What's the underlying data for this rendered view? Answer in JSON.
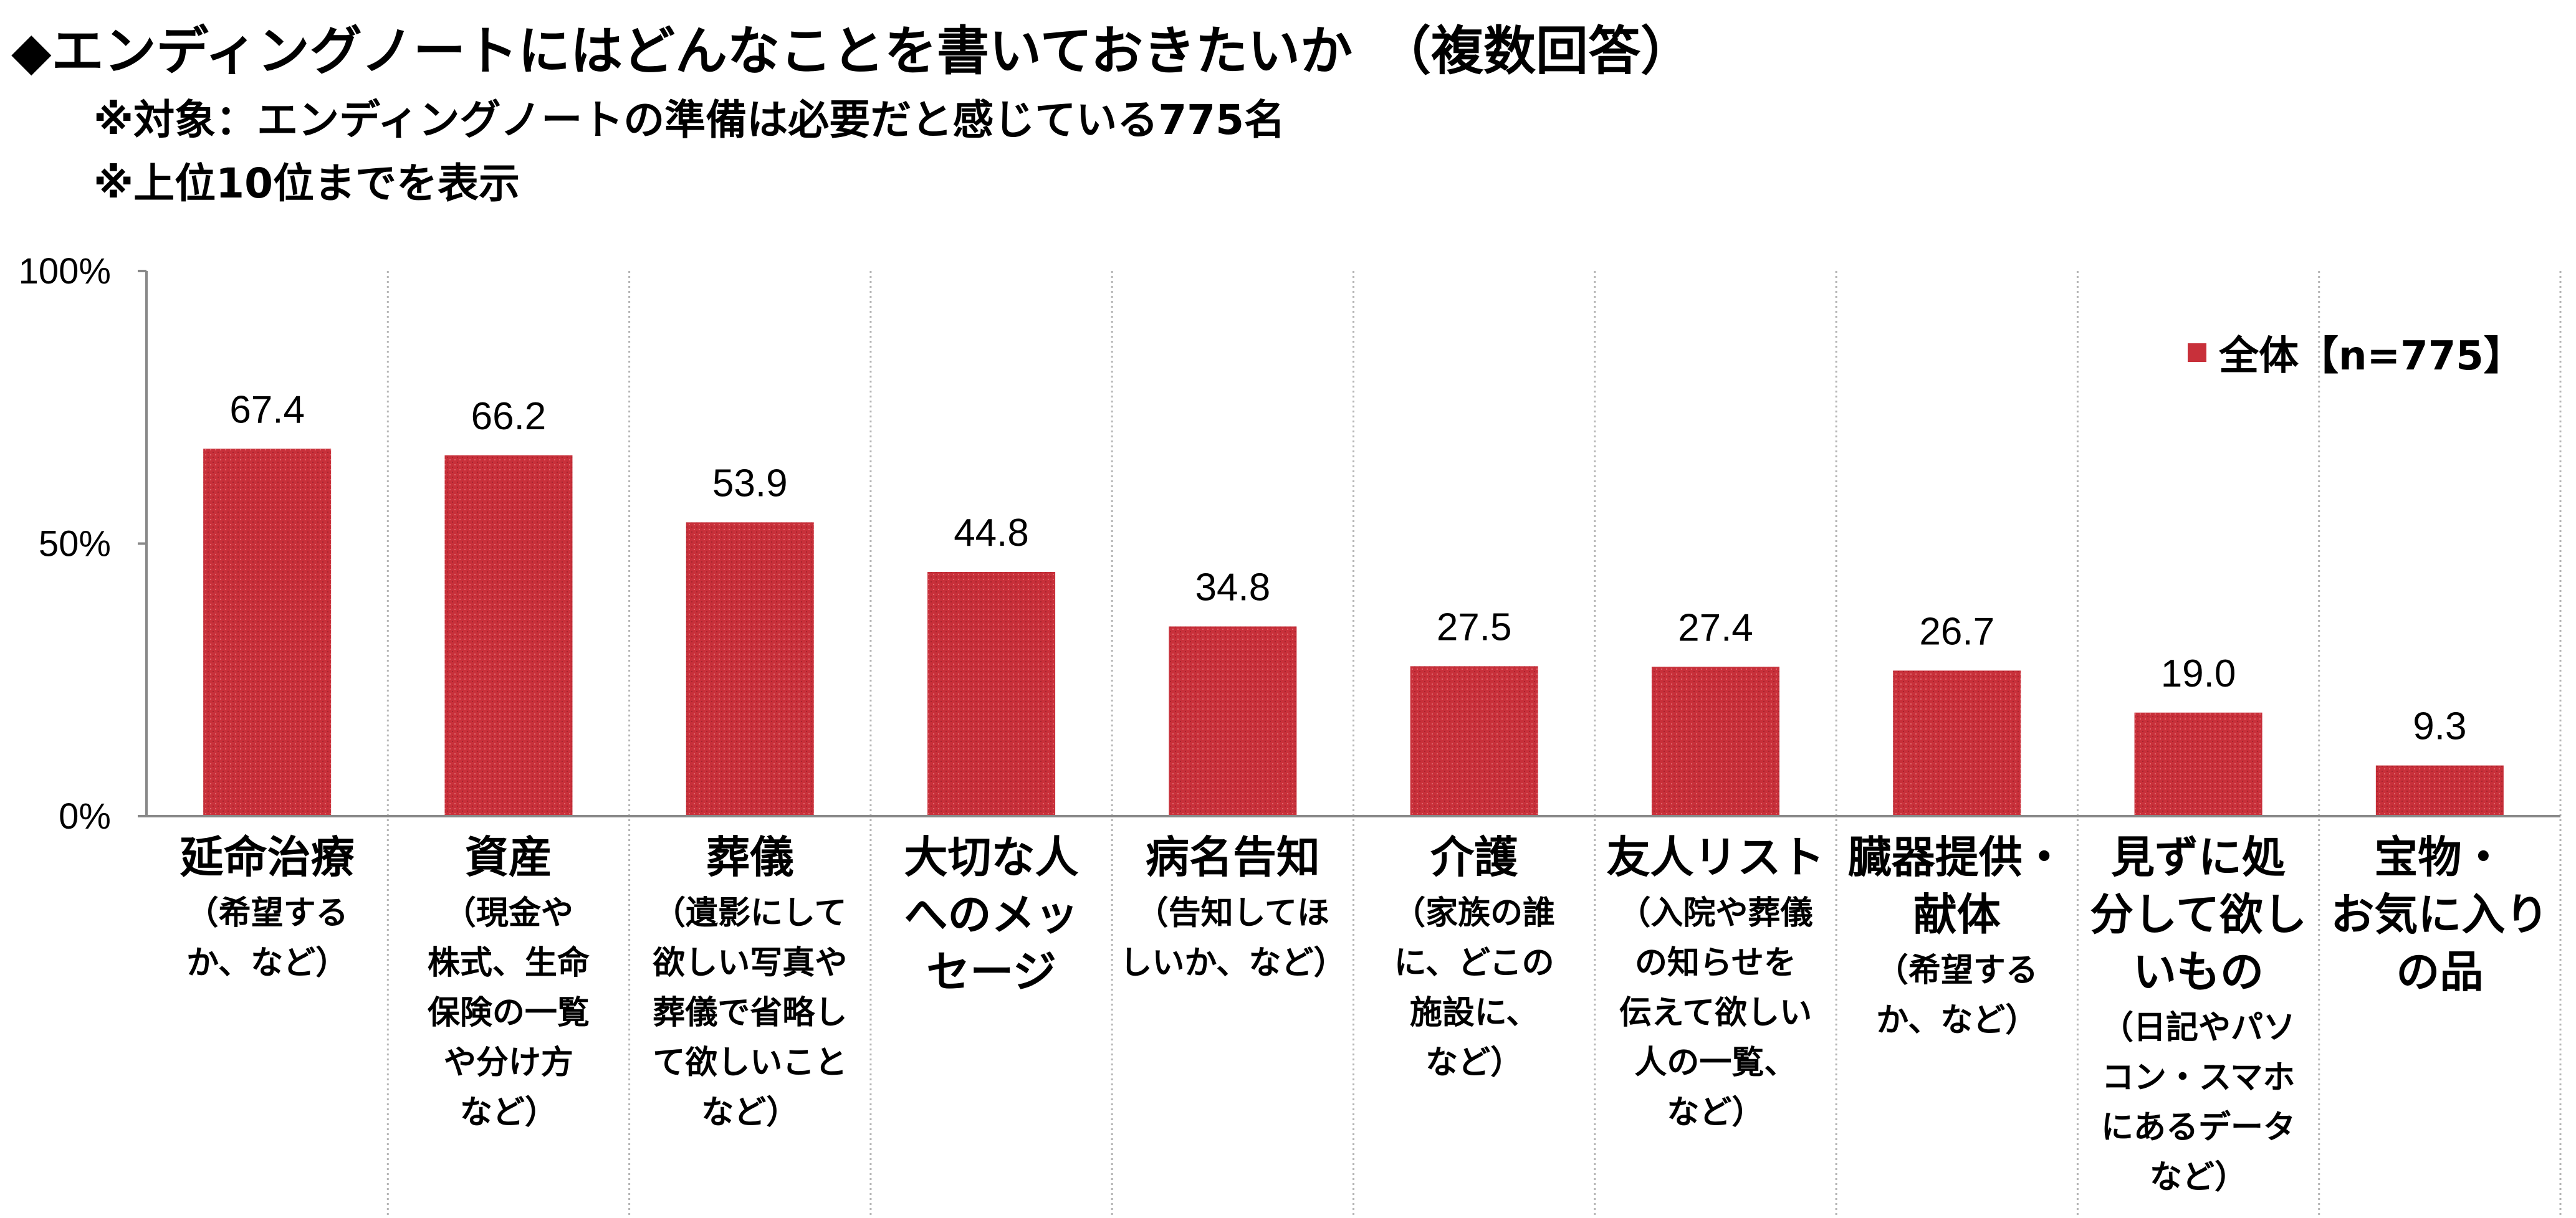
{
  "header": {
    "title": "◆エンディングノートにはどんなことを書いておきたいか　（複数回答）",
    "subtitle1": "※対象：エンディングノートの準備は必要だと感じている775名",
    "subtitle2": "※上位10位までを表示"
  },
  "colors": {
    "bar": "#C8303A",
    "grid": "#b5b5b5",
    "axis": "#888888"
  },
  "chart_data": {
    "type": "bar",
    "y_ticks": [
      "100%",
      "50%",
      "0%"
    ],
    "ylim": [
      0,
      100
    ],
    "grid": "vertical category separators",
    "legend_position": "top-right",
    "series": [
      {
        "name": "全体【n=775】",
        "values": [
          67.4,
          66.2,
          53.9,
          44.8,
          34.8,
          27.5,
          27.4,
          26.7,
          19.0,
          9.3
        ]
      }
    ],
    "value_labels": [
      "67.4",
      "66.2",
      "53.9",
      "44.8",
      "34.8",
      "27.5",
      "27.4",
      "26.7",
      "19.0",
      "9.3"
    ],
    "categories": [
      {
        "main": [
          "延命治療"
        ],
        "note": [
          "（希望する",
          "か、など）"
        ]
      },
      {
        "main": [
          "資産"
        ],
        "note": [
          "（現金や",
          "株式、生命",
          "保険の一覧",
          "や分け方",
          "など）"
        ]
      },
      {
        "main": [
          "葬儀"
        ],
        "note": [
          "（遺影にして",
          "欲しい写真や",
          "葬儀で省略し",
          "て欲しいこと",
          "など）"
        ]
      },
      {
        "main": [
          "大切な人",
          "へのメッ",
          "セージ"
        ],
        "note": []
      },
      {
        "main": [
          "病名告知"
        ],
        "note": [
          "（告知してほ",
          "しいか、など）"
        ]
      },
      {
        "main": [
          "介護"
        ],
        "note": [
          "（家族の誰",
          "に、どこの",
          "施設に、",
          "など）"
        ]
      },
      {
        "main": [
          "友人リスト"
        ],
        "note": [
          "（入院や葬儀",
          "の知らせを",
          "伝えて欲しい",
          "人の一覧、",
          "など）"
        ]
      },
      {
        "main": [
          "臓器提供・",
          "献体"
        ],
        "note": [
          "（希望する",
          "か、など）"
        ]
      },
      {
        "main": [
          "見ずに処",
          "分して欲し",
          "いもの"
        ],
        "note": [
          "（日記やパソ",
          "コン・スマホ",
          "にあるデータ",
          "など）"
        ]
      },
      {
        "main": [
          "宝物・",
          "お気に入り",
          "の品"
        ],
        "note": []
      }
    ]
  }
}
